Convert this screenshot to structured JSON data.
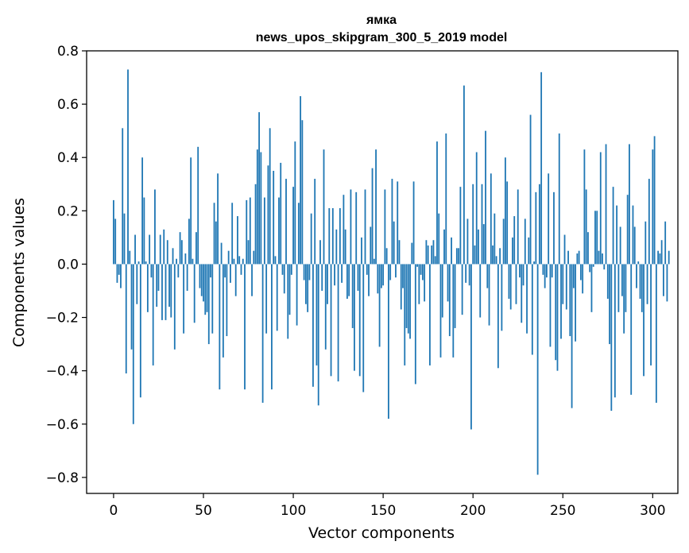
{
  "chart_data": {
    "type": "bar",
    "title": "ямка",
    "subtitle": "news_upos_skipgram_300_5_2019 model",
    "xlabel": "Vector components",
    "ylabel": "Components values",
    "xlim": [
      -15,
      314
    ],
    "ylim": [
      -0.86,
      0.8
    ],
    "x_ticks": [
      0,
      50,
      100,
      150,
      200,
      250,
      300
    ],
    "x_tick_labels": [
      "0",
      "50",
      "100",
      "150",
      "200",
      "250",
      "300"
    ],
    "y_ticks": [
      0.8,
      0.6,
      0.4,
      0.2,
      0.0,
      -0.2,
      -0.4,
      -0.6,
      -0.8
    ],
    "y_tick_labels": [
      "0.8",
      "0.6",
      "0.4",
      "0.2",
      "0.0",
      "−0.2",
      "−0.4",
      "−0.6",
      "−0.8"
    ],
    "bar_color": "#1f77b4",
    "grid": false,
    "values": [
      0.24,
      0.17,
      -0.07,
      -0.04,
      -0.09,
      0.51,
      0.19,
      -0.41,
      0.73,
      0.05,
      -0.32,
      -0.6,
      0.11,
      -0.15,
      0.01,
      -0.5,
      0.4,
      0.25,
      0.01,
      -0.18,
      0.11,
      -0.05,
      -0.38,
      0.28,
      -0.16,
      -0.1,
      0.11,
      -0.21,
      0.13,
      -0.21,
      0.09,
      -0.16,
      -0.2,
      0.06,
      -0.32,
      0.02,
      -0.05,
      0.12,
      0.09,
      -0.26,
      0.04,
      -0.1,
      0.17,
      0.4,
      0.02,
      -0.22,
      0.12,
      0.44,
      -0.09,
      -0.12,
      -0.14,
      -0.19,
      -0.18,
      -0.3,
      -0.05,
      -0.26,
      0.23,
      0.16,
      0.34,
      -0.47,
      0.08,
      -0.35,
      -0.05,
      -0.27,
      0.05,
      -0.07,
      0.23,
      0.02,
      -0.12,
      0.18,
      0.03,
      -0.04,
      0.02,
      -0.47,
      0.24,
      0.09,
      0.25,
      -0.12,
      0.05,
      0.3,
      0.43,
      0.57,
      0.42,
      -0.52,
      0.25,
      -0.26,
      0.37,
      0.51,
      -0.47,
      0.35,
      0.03,
      -0.25,
      0.25,
      0.38,
      -0.04,
      -0.11,
      0.32,
      -0.28,
      -0.19,
      -0.04,
      0.29,
      0.46,
      -0.23,
      0.23,
      0.63,
      0.54,
      -0.06,
      -0.15,
      -0.18,
      -0.06,
      0.19,
      -0.46,
      0.32,
      -0.38,
      -0.53,
      0.09,
      -0.1,
      0.43,
      -0.32,
      -0.15,
      0.21,
      -0.42,
      0.21,
      -0.08,
      0.13,
      -0.44,
      0.21,
      -0.07,
      0.26,
      0.13,
      -0.13,
      -0.12,
      0.28,
      -0.24,
      -0.4,
      0.27,
      -0.1,
      -0.42,
      0.1,
      -0.48,
      0.28,
      -0.04,
      -0.12,
      0.14,
      0.36,
      0.02,
      0.43,
      -0.11,
      -0.31,
      -0.09,
      -0.08,
      0.28,
      0.06,
      -0.58,
      -0.06,
      0.32,
      0.16,
      -0.05,
      0.31,
      0.09,
      -0.17,
      -0.09,
      -0.38,
      -0.24,
      -0.26,
      -0.28,
      0.08,
      0.31,
      -0.45,
      -0.01,
      -0.15,
      -0.04,
      -0.06,
      -0.14,
      0.09,
      0.07,
      -0.38,
      0.07,
      0.09,
      0.03,
      0.46,
      0.19,
      -0.35,
      -0.2,
      0.13,
      0.49,
      -0.14,
      -0.27,
      0.1,
      -0.35,
      -0.24,
      0.06,
      0.06,
      0.29,
      -0.19,
      0.67,
      -0.07,
      0.17,
      -0.08,
      -0.62,
      0.3,
      0.07,
      0.42,
      0.13,
      -0.2,
      0.3,
      0.15,
      0.5,
      -0.09,
      -0.23,
      0.34,
      0.07,
      0.19,
      0.03,
      -0.39,
      0.06,
      -0.25,
      0.17,
      0.4,
      0.31,
      -0.13,
      -0.17,
      0.1,
      0.18,
      -0.15,
      0.28,
      -0.05,
      -0.22,
      -0.08,
      0.17,
      -0.26,
      0.1,
      0.56,
      -0.34,
      0.01,
      0.27,
      -0.79,
      0.3,
      0.72,
      -0.04,
      -0.09,
      -0.05,
      0.34,
      -0.31,
      -0.05,
      0.27,
      -0.36,
      -0.4,
      0.49,
      -0.28,
      -0.15,
      0.11,
      -0.17,
      0.05,
      -0.27,
      -0.54,
      -0.09,
      -0.29,
      0.04,
      0.05,
      -0.06,
      -0.11,
      0.43,
      0.28,
      0.12,
      -0.03,
      -0.18,
      -0.01,
      0.2,
      0.2,
      0.05,
      0.42,
      0.04,
      -0.02,
      0.45,
      -0.13,
      -0.3,
      -0.55,
      0.29,
      -0.5,
      0.22,
      -0.18,
      0.14,
      -0.12,
      -0.26,
      -0.18,
      0.26,
      0.45,
      -0.49,
      0.22,
      0.14,
      -0.09,
      0.01,
      -0.13,
      -0.18,
      -0.42,
      0.16,
      -0.15,
      0.32,
      -0.38,
      0.43,
      0.48,
      -0.52,
      0.05,
      0.04,
      0.09,
      -0.12,
      0.16,
      -0.14,
      0.05
    ]
  }
}
